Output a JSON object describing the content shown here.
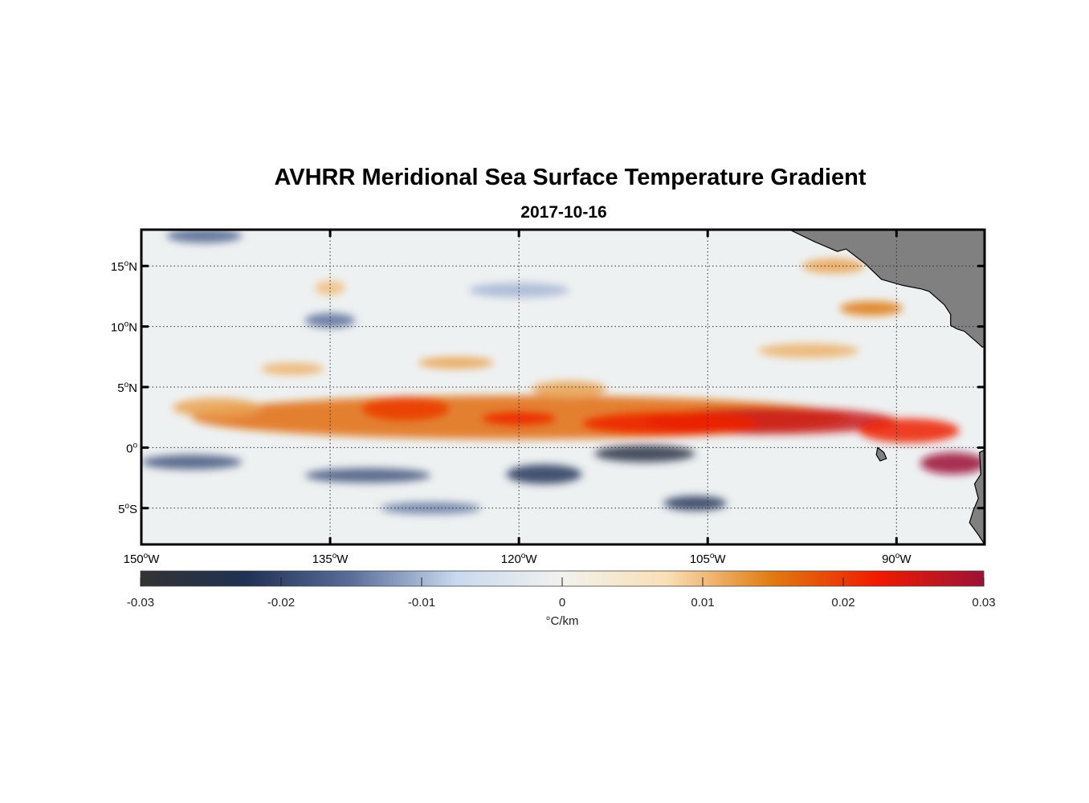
{
  "title": "AVHRR Meridional Sea Surface Temperature Gradient",
  "subtitle": "2017-10-16",
  "chart_data": {
    "type": "heatmap",
    "variable": "meridional SST gradient",
    "grid": true,
    "x_axis": {
      "range": [
        -150,
        -83
      ],
      "ticks": [
        {
          "value": -150,
          "num": "150",
          "deg": "o",
          "hemi": "W"
        },
        {
          "value": -135,
          "num": "135",
          "deg": "o",
          "hemi": "W"
        },
        {
          "value": -120,
          "num": "120",
          "deg": "o",
          "hemi": "W"
        },
        {
          "value": -105,
          "num": "105",
          "deg": "o",
          "hemi": "W"
        },
        {
          "value": -90,
          "num": "90",
          "deg": "o",
          "hemi": "W"
        }
      ]
    },
    "y_axis": {
      "range": [
        -8,
        18
      ],
      "ticks": [
        {
          "value": 15,
          "num": "15",
          "deg": "o",
          "hemi": "N"
        },
        {
          "value": 10,
          "num": "10",
          "deg": "o",
          "hemi": "N"
        },
        {
          "value": 5,
          "num": "5",
          "deg": "o",
          "hemi": "N"
        },
        {
          "value": 0,
          "num": "0",
          "deg": "o",
          "hemi": ""
        },
        {
          "value": -5,
          "num": "5",
          "deg": "o",
          "hemi": "S"
        }
      ]
    },
    "colorbar": {
      "range": [
        -0.03,
        0.03
      ],
      "ticks": [
        -0.03,
        -0.02,
        -0.01,
        0,
        0.01,
        0.02,
        0.03
      ],
      "tick_labels": [
        "-0.03",
        "-0.02",
        "-0.01",
        "0",
        "0.01",
        "0.02",
        "0.03"
      ],
      "unit_label": "°C/km",
      "stops": [
        "#333333",
        "#1f3154",
        "#5a6e9a",
        "#c9d9ef",
        "#f2f2ee",
        "#f9dfb5",
        "#e07a10",
        "#f01a00",
        "#9c1236"
      ]
    },
    "features": [
      {
        "lon": -120,
        "lat": 2.5,
        "value": 0.016,
        "sx": 26,
        "sy": 1.8
      },
      {
        "lon": -100,
        "lat": 2.2,
        "value": 0.026,
        "sx": 10,
        "sy": 1.1
      },
      {
        "lon": -108,
        "lat": 2.0,
        "value": 0.022,
        "sx": 7,
        "sy": 1.0
      },
      {
        "lon": -89,
        "lat": 1.4,
        "value": 0.022,
        "sx": 4,
        "sy": 1.0
      },
      {
        "lon": -85.5,
        "lat": -1.3,
        "value": 0.03,
        "sx": 2.6,
        "sy": 0.9
      },
      {
        "lon": -129,
        "lat": 3.2,
        "value": 0.02,
        "sx": 3.5,
        "sy": 1.0
      },
      {
        "lon": -120,
        "lat": 2.4,
        "value": 0.022,
        "sx": 3,
        "sy": 0.6
      },
      {
        "lon": -116,
        "lat": 4.8,
        "value": 0.012,
        "sx": 3,
        "sy": 0.7
      },
      {
        "lon": -144,
        "lat": 3.3,
        "value": 0.012,
        "sx": 3.5,
        "sy": 0.8
      },
      {
        "lon": -138,
        "lat": 6.5,
        "value": 0.011,
        "sx": 2.5,
        "sy": 0.5
      },
      {
        "lon": -125,
        "lat": 7.0,
        "value": 0.012,
        "sx": 3,
        "sy": 0.5
      },
      {
        "lon": -110,
        "lat": -0.5,
        "value": -0.026,
        "sx": 4,
        "sy": 0.7
      },
      {
        "lon": -118,
        "lat": -2.2,
        "value": -0.022,
        "sx": 3,
        "sy": 0.8
      },
      {
        "lon": -132,
        "lat": -2.3,
        "value": -0.018,
        "sx": 5,
        "sy": 0.6
      },
      {
        "lon": -146,
        "lat": -1.2,
        "value": -0.018,
        "sx": 4,
        "sy": 0.6
      },
      {
        "lon": -106,
        "lat": -4.6,
        "value": -0.022,
        "sx": 2.5,
        "sy": 0.6
      },
      {
        "lon": -135,
        "lat": 10.5,
        "value": -0.015,
        "sx": 2,
        "sy": 0.6
      },
      {
        "lon": -135,
        "lat": 13.2,
        "value": 0.01,
        "sx": 1.2,
        "sy": 0.6
      },
      {
        "lon": -95,
        "lat": 15.0,
        "value": 0.012,
        "sx": 2.5,
        "sy": 0.6
      },
      {
        "lon": -92,
        "lat": 11.5,
        "value": 0.015,
        "sx": 2.5,
        "sy": 0.6
      },
      {
        "lon": -97,
        "lat": 8.0,
        "value": 0.011,
        "sx": 4,
        "sy": 0.6
      },
      {
        "lon": -127,
        "lat": -5.0,
        "value": -0.014,
        "sx": 4,
        "sy": 0.5
      },
      {
        "lon": -145,
        "lat": 17.5,
        "value": -0.016,
        "sx": 3,
        "sy": 0.6
      },
      {
        "lon": -120,
        "lat": 13.0,
        "value": -0.01,
        "sx": 4,
        "sy": 0.6
      }
    ],
    "land": [
      {
        "name": "central-america",
        "points": [
          [
            -98.5,
            18
          ],
          [
            -96.5,
            17
          ],
          [
            -94.7,
            16.2
          ],
          [
            -94,
            16.4
          ],
          [
            -92.5,
            15.2
          ],
          [
            -91.2,
            13.9
          ],
          [
            -89.5,
            13.4
          ],
          [
            -88,
            13.1
          ],
          [
            -87.4,
            12.9
          ],
          [
            -86.2,
            11.8
          ],
          [
            -85.7,
            11.0
          ],
          [
            -85.7,
            10.1
          ],
          [
            -85.2,
            9.8
          ],
          [
            -84.6,
            9.6
          ],
          [
            -83.5,
            8.6
          ],
          [
            -83.2,
            8.3
          ],
          [
            -83,
            8.3
          ],
          [
            -83,
            18
          ]
        ]
      },
      {
        "name": "south-america",
        "points": [
          [
            -83,
            -0.2
          ],
          [
            -83.4,
            -0.4
          ],
          [
            -83.3,
            -2.2
          ],
          [
            -83.8,
            -3.0
          ],
          [
            -83.5,
            -4.2
          ],
          [
            -83.9,
            -5.2
          ],
          [
            -84.2,
            -6.2
          ],
          [
            -83.5,
            -7.2
          ],
          [
            -83,
            -8
          ],
          [
            -83,
            -0.2
          ]
        ]
      },
      {
        "name": "galapagos",
        "points": [
          [
            -91.5,
            0
          ],
          [
            -91.0,
            -0.4
          ],
          [
            -90.8,
            -0.9
          ],
          [
            -91.3,
            -1.1
          ],
          [
            -91.6,
            -0.6
          ],
          [
            -91.5,
            0
          ]
        ]
      }
    ]
  }
}
